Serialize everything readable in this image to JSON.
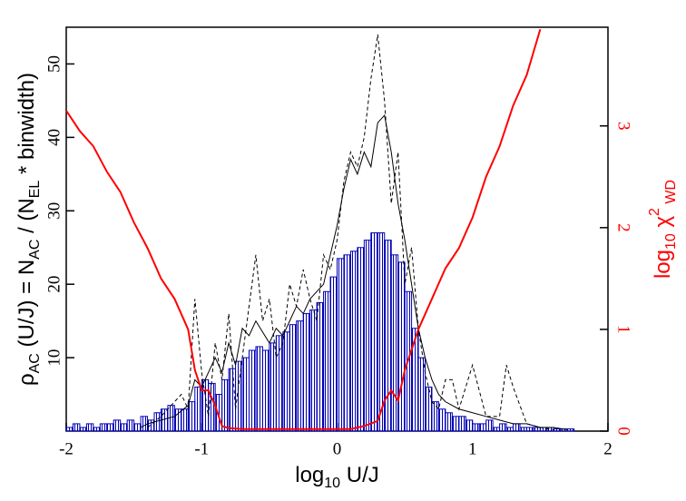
{
  "chart_data": {
    "type": "histogram",
    "xlabel": [
      "log",
      "10",
      " U/J"
    ],
    "ylabel": [
      "ρ",
      "AC",
      " (U/J) = N",
      "AC",
      " / (N",
      "EL",
      " * binwidth)"
    ],
    "y2label": [
      "log",
      "10",
      " χ",
      "2",
      " WD"
    ],
    "xlim": [
      -2,
      2
    ],
    "xticks": [
      -2,
      -1,
      0,
      1,
      2
    ],
    "ylim": [
      0,
      55
    ],
    "yticks": [
      10,
      20,
      30,
      40,
      50
    ],
    "y2lim": [
      0,
      3.97
    ],
    "y2ticks": [
      0,
      1,
      2,
      3
    ],
    "color": "#0000b4",
    "bins": [
      -2,
      -1.95,
      -1.9,
      -1.85,
      -1.8,
      -1.75,
      -1.7,
      -1.65,
      -1.6,
      -1.55,
      -1.5,
      -1.45,
      -1.4,
      -1.35,
      -1.3,
      -1.25,
      -1.2,
      -1.15,
      -1.1,
      -1.05,
      -1,
      -0.95,
      -0.9,
      -0.85,
      -0.8,
      -0.75,
      -0.7,
      -0.65,
      -0.6,
      -0.55,
      -0.5,
      -0.45,
      -0.4,
      -0.35,
      -0.3,
      -0.25,
      -0.2,
      -0.15,
      -0.1,
      -0.05,
      0,
      0.05,
      0.1,
      0.15,
      0.2,
      0.25,
      0.3,
      0.35,
      0.4,
      0.45,
      0.5,
      0.55,
      0.6,
      0.65,
      0.7,
      0.75,
      0.8,
      0.85,
      0.9,
      0.95,
      1,
      1.05,
      1.1,
      1.15,
      1.2,
      1.25,
      1.3,
      1.35,
      1.4,
      1.45,
      1.5,
      1.55,
      1.6,
      1.65,
      1.7,
      1.75,
      1.8,
      1.85,
      1.9,
      1.95,
      2
    ],
    "values": [
      0.5,
      1,
      0.5,
      1,
      0.5,
      1,
      1,
      1.5,
      1,
      1.5,
      1,
      2,
      1.5,
      2.5,
      3,
      3.5,
      3,
      3,
      4,
      6,
      7,
      6.5,
      5,
      7,
      8.5,
      9.5,
      10,
      11,
      11.5,
      11,
      12,
      13,
      13.5,
      14.5,
      15,
      16,
      16.5,
      17.5,
      19,
      21,
      23.5,
      24,
      24.5,
      25,
      26,
      27,
      27,
      26,
      24,
      23,
      19,
      14,
      10,
      6,
      4,
      3,
      2.5,
      2,
      2,
      1.5,
      1,
      1,
      1.5,
      0.5,
      1,
      0.5,
      1,
      0.5,
      0.5,
      0.5,
      0.5,
      0.5,
      0.3,
      0.3,
      0.3,
      0,
      0,
      0,
      0,
      0
    ],
    "series": [
      {
        "type": "line",
        "color": "#000000",
        "dash": false,
        "x": [
          -1.45,
          -1.4,
          -1.3,
          -1.2,
          -1.1,
          -1.05,
          -1,
          -0.95,
          -0.9,
          -0.85,
          -0.8,
          -0.75,
          -0.7,
          -0.65,
          -0.6,
          -0.5,
          -0.45,
          -0.4,
          -0.35,
          -0.3,
          -0.25,
          -0.2,
          -0.1,
          -0.05,
          0,
          0.05,
          0.1,
          0.15,
          0.2,
          0.25,
          0.3,
          0.35,
          0.4,
          0.45,
          0.5,
          0.55,
          0.6,
          0.65,
          0.7,
          0.75,
          0.8,
          0.9,
          1,
          1.1,
          1.2,
          1.3,
          1.4,
          1.5,
          1.6,
          1.7
        ],
        "values": [
          0.5,
          1,
          1.5,
          2,
          3.5,
          7,
          6,
          8,
          10,
          8,
          12,
          9,
          14,
          13,
          15,
          12,
          14,
          13,
          15,
          17,
          16,
          18,
          20,
          24,
          28,
          33,
          37,
          35,
          38,
          36,
          42,
          43,
          38,
          31,
          26,
          20,
          14,
          10,
          7,
          5,
          4,
          3,
          2.5,
          2,
          1.5,
          1,
          1,
          0.5,
          0.5,
          0.2
        ]
      },
      {
        "type": "line",
        "color": "#000000",
        "dash": true,
        "x": [
          -1.4,
          -1.3,
          -1.2,
          -1.15,
          -1.1,
          -1.05,
          -1,
          -0.95,
          -0.9,
          -0.85,
          -0.8,
          -0.75,
          -0.7,
          -0.65,
          -0.6,
          -0.55,
          -0.5,
          -0.45,
          -0.4,
          -0.35,
          -0.3,
          -0.25,
          -0.2,
          -0.15,
          -0.1,
          -0.05,
          0,
          0.05,
          0.1,
          0.15,
          0.2,
          0.25,
          0.3,
          0.35,
          0.4,
          0.45,
          0.5,
          0.55,
          0.6,
          0.65,
          0.7,
          0.75,
          0.8,
          0.85,
          0.9,
          1,
          1.1,
          1.2,
          1.25,
          1.3,
          1.4,
          1.5,
          1.6
        ],
        "values": [
          0.5,
          2,
          4,
          5,
          3,
          18,
          8,
          2,
          12,
          7,
          16,
          3,
          10,
          17,
          24,
          15,
          18,
          10,
          12,
          20,
          17,
          22,
          18,
          15,
          24,
          22,
          26,
          34,
          38,
          36,
          40,
          48,
          54,
          45,
          31,
          38,
          20,
          25,
          14,
          8,
          4,
          3,
          7,
          7,
          3,
          9,
          2,
          2,
          9,
          6,
          1,
          0.5,
          0.2
        ]
      },
      {
        "type": "line",
        "color": "#ff0000",
        "dash": false,
        "axis": "y2",
        "x": [
          -2,
          -1.9,
          -1.8,
          -1.7,
          -1.6,
          -1.5,
          -1.4,
          -1.3,
          -1.2,
          -1.1,
          -1.05,
          -1,
          -0.95,
          -0.9,
          -0.85,
          -0.8,
          -0.7,
          -0.5,
          -0.3,
          -0.1,
          0.1,
          0.2,
          0.3,
          0.35,
          0.4,
          0.45,
          0.5,
          0.55,
          0.6,
          0.7,
          0.8,
          0.9,
          1,
          1.1,
          1.2,
          1.3,
          1.4,
          1.5
        ],
        "values": [
          3.15,
          2.95,
          2.8,
          2.55,
          2.35,
          2.05,
          1.8,
          1.5,
          1.3,
          1,
          0.6,
          0.4,
          0.4,
          0.25,
          0.05,
          0.03,
          0.02,
          0.02,
          0.02,
          0.02,
          0.02,
          0.05,
          0.1,
          0.3,
          0.4,
          0.3,
          0.6,
          0.8,
          1,
          1.3,
          1.6,
          1.8,
          2.1,
          2.5,
          2.8,
          3.2,
          3.5,
          3.95
        ]
      }
    ]
  }
}
